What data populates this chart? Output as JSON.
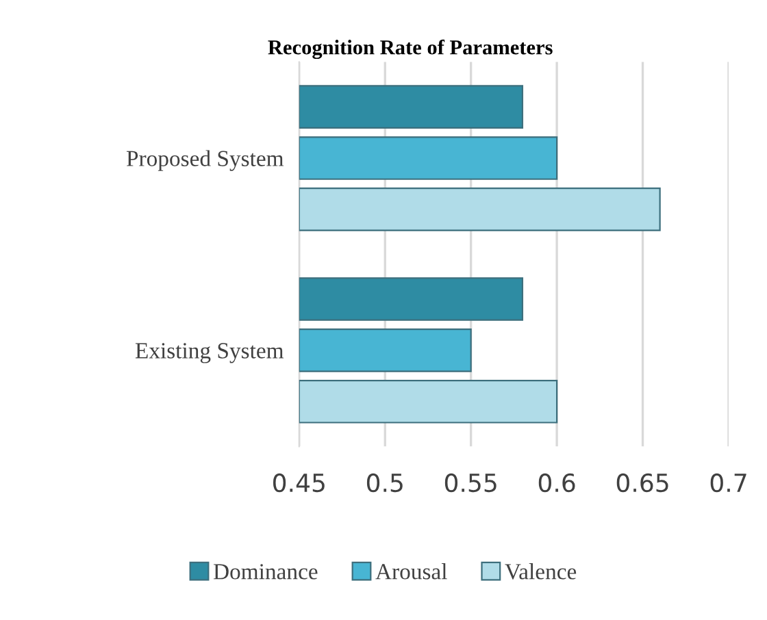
{
  "chart_data": {
    "type": "bar",
    "orientation": "horizontal",
    "title": "Recognition Rate of Parameters",
    "categories": [
      "Proposed System",
      "Existing System"
    ],
    "series": [
      {
        "name": "Dominance",
        "color": "#2e8ca3",
        "values": [
          0.58,
          0.58
        ]
      },
      {
        "name": "Arousal",
        "color": "#48b5d3",
        "values": [
          0.6,
          0.55
        ]
      },
      {
        "name": "Valence",
        "color": "#b0dce8",
        "values": [
          0.66,
          0.6
        ]
      }
    ],
    "xlim": [
      0.45,
      0.7
    ],
    "xticks": [
      0.45,
      0.5,
      0.55,
      0.6,
      0.65,
      0.7
    ],
    "grid": "x",
    "legend": "bottom"
  }
}
